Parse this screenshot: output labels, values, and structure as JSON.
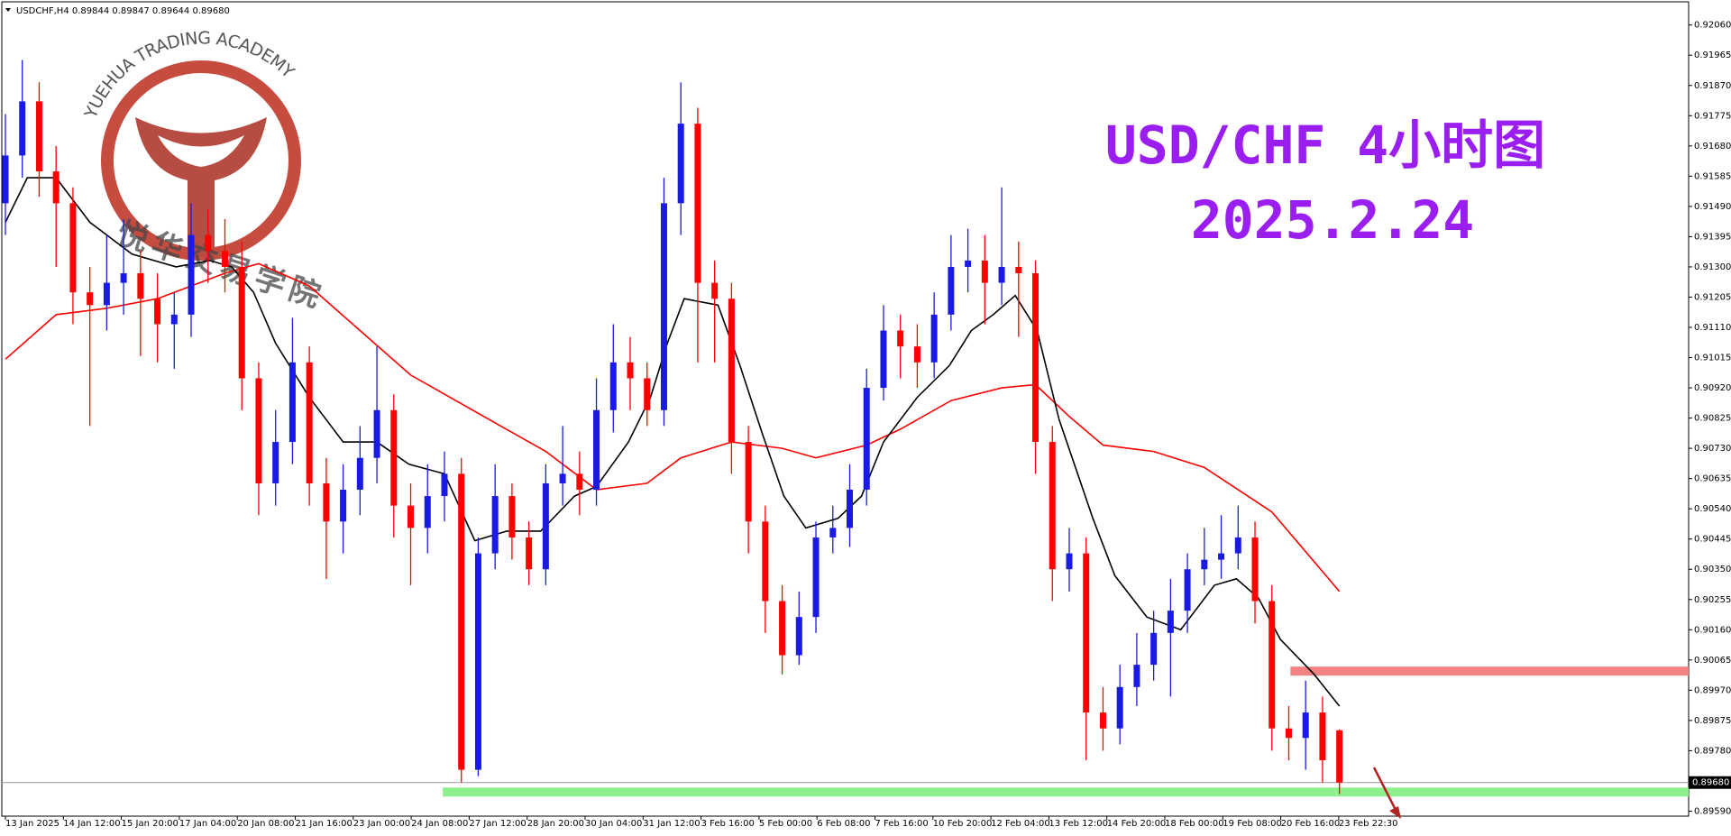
{
  "chart_data": {
    "type": "candlestick",
    "header": "USDCHF,H4  0.89844 0.89847 0.89644 0.89680",
    "title": "USD/CHF 4小时图",
    "subtitle": "2025.2.24",
    "watermark": "YUEHUA TRADING ACADEMY",
    "watermark_cn": "悦华交易学院",
    "up_color": "#1a1ae6",
    "down_color": "#ff0000",
    "categories": [
      "13 Jan 2025",
      "14 Jan 12:00",
      "15 Jan 20:00",
      "17 Jan 04:00",
      "20 Jan 08:00",
      "21 Jan 16:00",
      "23 Jan 00:00",
      "24 Jan 08:00",
      "27 Jan 12:00",
      "28 Jan 20:00",
      "30 Jan 04:00",
      "31 Jan 12:00",
      "3 Feb 16:00",
      "5 Feb 00:00",
      "6 Feb 08:00",
      "7 Feb 16:00",
      "10 Feb 20:00",
      "12 Feb 04:00",
      "13 Feb 12:00",
      "14 Feb 20:00",
      "18 Feb 00:00",
      "19 Feb 08:00",
      "20 Feb 16:00",
      "23 Feb 22:30"
    ],
    "open": [
      0.915,
      0.9165,
      0.9182,
      0.916,
      0.915,
      0.9122,
      0.9118,
      0.9125,
      0.9128,
      0.912,
      0.9112,
      0.9115,
      0.914,
      0.9135,
      0.913,
      0.9095,
      0.9062,
      0.9075,
      0.91,
      0.9062,
      0.905,
      0.906,
      0.907,
      0.9085,
      0.9055,
      0.9048,
      0.9058,
      0.9065,
      0.8972,
      0.904,
      0.9058,
      0.9045,
      0.9035,
      0.9062,
      0.9065,
      0.906,
      0.9085,
      0.91,
      0.9095,
      0.9085,
      0.915,
      0.9175,
      0.9125,
      0.912,
      0.9075,
      0.905,
      0.9025,
      0.9008,
      0.902,
      0.9045,
      0.9048,
      0.906,
      0.9092,
      0.911,
      0.9105,
      0.91,
      0.9115,
      0.913,
      0.9132,
      0.9125,
      0.913,
      0.9128,
      0.9075,
      0.9035,
      0.904,
      0.899,
      0.8985,
      0.8998,
      0.9005,
      0.9015,
      0.9022,
      0.9035,
      0.9038,
      0.904,
      0.9045,
      0.9025,
      0.8985,
      0.8982,
      0.899,
      0.89844
    ],
    "high": [
      0.9178,
      0.9195,
      0.9188,
      0.9168,
      0.9155,
      0.913,
      0.914,
      0.9145,
      0.9135,
      0.9128,
      0.9122,
      0.915,
      0.9148,
      0.9145,
      0.9138,
      0.91,
      0.9085,
      0.9114,
      0.9105,
      0.907,
      0.9068,
      0.908,
      0.9105,
      0.909,
      0.9062,
      0.9068,
      0.9072,
      0.907,
      0.9045,
      0.9068,
      0.9062,
      0.905,
      0.9068,
      0.908,
      0.9072,
      0.9095,
      0.9112,
      0.9108,
      0.91,
      0.9158,
      0.9188,
      0.918,
      0.9132,
      0.9125,
      0.908,
      0.9055,
      0.903,
      0.9028,
      0.905,
      0.9055,
      0.9068,
      0.9098,
      0.9118,
      0.9115,
      0.9112,
      0.9122,
      0.914,
      0.9142,
      0.914,
      0.9155,
      0.9138,
      0.9132,
      0.908,
      0.9048,
      0.9045,
      0.8998,
      0.9005,
      0.9015,
      0.9022,
      0.9032,
      0.904,
      0.9048,
      0.9052,
      0.9055,
      0.905,
      0.903,
      0.8992,
      0.9,
      0.8995,
      0.89847
    ],
    "low": [
      0.914,
      0.9158,
      0.9152,
      0.913,
      0.9112,
      0.908,
      0.911,
      0.9115,
      0.9102,
      0.91,
      0.9098,
      0.9108,
      0.9125,
      0.9122,
      0.9085,
      0.9052,
      0.9055,
      0.9068,
      0.9055,
      0.9032,
      0.904,
      0.9052,
      0.9062,
      0.9045,
      0.903,
      0.904,
      0.905,
      0.8968,
      0.897,
      0.9035,
      0.9038,
      0.903,
      0.903,
      0.9055,
      0.9052,
      0.9055,
      0.9078,
      0.9085,
      0.908,
      0.908,
      0.914,
      0.91,
      0.91,
      0.9065,
      0.904,
      0.9015,
      0.9002,
      0.9005,
      0.9015,
      0.904,
      0.9042,
      0.9055,
      0.9088,
      0.9095,
      0.9092,
      0.9095,
      0.911,
      0.9122,
      0.9112,
      0.9118,
      0.9108,
      0.9065,
      0.9025,
      0.9028,
      0.8975,
      0.8978,
      0.898,
      0.8992,
      0.9,
      0.8995,
      0.9015,
      0.903,
      0.9032,
      0.9035,
      0.9018,
      0.8978,
      0.8975,
      0.8972,
      0.8968,
      0.89644
    ],
    "close": [
      0.9165,
      0.9182,
      0.916,
      0.915,
      0.9122,
      0.9118,
      0.9125,
      0.9128,
      0.912,
      0.9112,
      0.9115,
      0.914,
      0.9135,
      0.913,
      0.9095,
      0.9062,
      0.9075,
      0.91,
      0.9062,
      0.905,
      0.906,
      0.907,
      0.9085,
      0.9055,
      0.9048,
      0.9058,
      0.9065,
      0.8972,
      0.904,
      0.9058,
      0.9045,
      0.9035,
      0.9062,
      0.9065,
      0.906,
      0.9085,
      0.91,
      0.9095,
      0.9085,
      0.915,
      0.9175,
      0.9125,
      0.912,
      0.9075,
      0.905,
      0.9025,
      0.9008,
      0.902,
      0.9045,
      0.9048,
      0.906,
      0.9092,
      0.911,
      0.9105,
      0.91,
      0.9115,
      0.913,
      0.9132,
      0.9125,
      0.913,
      0.9128,
      0.9075,
      0.9035,
      0.904,
      0.899,
      0.8985,
      0.8998,
      0.9005,
      0.9015,
      0.9022,
      0.9035,
      0.9038,
      0.904,
      0.9045,
      0.9025,
      0.8985,
      0.8982,
      0.899,
      0.8975,
      0.8968
    ],
    "ma_slow": {
      "color": "#ff0000",
      "x": [
        0,
        3,
        6,
        9,
        13,
        15,
        18,
        21,
        24,
        26,
        29,
        32,
        35,
        38,
        40,
        43,
        46,
        48,
        51,
        53,
        56,
        59,
        61,
        63,
        65,
        68,
        71,
        75,
        79
      ],
      "values": [
        0.9101,
        0.9115,
        0.9117,
        0.912,
        0.9128,
        0.9131,
        0.9124,
        0.911,
        0.9096,
        0.909,
        0.9081,
        0.9072,
        0.906,
        0.9062,
        0.907,
        0.9075,
        0.9073,
        0.907,
        0.9074,
        0.9079,
        0.9088,
        0.9092,
        0.9093,
        0.9083,
        0.9074,
        0.9072,
        0.9067,
        0.9053,
        0.9028
      ]
    },
    "ma_fast": {
      "color": "#000000",
      "x": [
        0,
        1.3,
        3,
        5,
        7.5,
        10.1,
        12.1,
        13.4,
        14.7,
        16,
        18,
        20,
        22,
        23.9,
        26,
        27.8,
        29.7,
        31.7,
        33.7,
        35,
        36.9,
        38.2,
        39.2,
        40.2,
        42.2,
        43.5,
        44.8,
        46.1,
        47.4,
        49.3,
        50.7,
        52,
        54,
        55.9,
        57.2,
        58.5,
        59.8,
        61.1,
        62.4,
        64.4,
        65.7,
        67.6,
        69.6,
        71.6,
        72.9,
        74.2,
        75.5,
        77.5,
        79
      ],
      "values": [
        0.9144,
        0.9158,
        0.9158,
        0.9144,
        0.9134,
        0.913,
        0.9132,
        0.913,
        0.9122,
        0.9106,
        0.9089,
        0.9075,
        0.9075,
        0.9068,
        0.9065,
        0.9044,
        0.9047,
        0.9047,
        0.9058,
        0.9061,
        0.9075,
        0.9089,
        0.9106,
        0.912,
        0.9118,
        0.9099,
        0.9078,
        0.9058,
        0.9048,
        0.9051,
        0.9058,
        0.9075,
        0.9089,
        0.9099,
        0.911,
        0.9115,
        0.9121,
        0.911,
        0.9082,
        0.9051,
        0.9033,
        0.902,
        0.9016,
        0.903,
        0.9032,
        0.9026,
        0.9013,
        0.9002,
        0.8992
      ]
    },
    "zones": [
      {
        "start": 76.1,
        "price": 0.9003,
        "color": "#f38383"
      },
      {
        "start": 25.9,
        "price": 0.8965,
        "color": "#8ef08e"
      }
    ],
    "last_price": {
      "value": 0.8968,
      "label": "0.89680"
    },
    "ylim": [
      0.8958,
      0.9213
    ],
    "yticks": [
      {
        "value": 0.9206,
        "label": "0.92060"
      },
      0.91965,
      {
        "value": 0.9187,
        "label": "0.91870"
      },
      0.91775,
      {
        "value": 0.9168,
        "label": "0.91680"
      },
      0.91585,
      {
        "value": 0.9149,
        "label": "0.91490"
      },
      0.91395,
      {
        "value": 0.913,
        "label": "0.91300"
      },
      0.91205,
      {
        "value": 0.9111,
        "label": "0.91110"
      },
      0.91015,
      {
        "value": 0.9092,
        "label": "0.90920"
      },
      0.90825,
      {
        "value": 0.9073,
        "label": "0.90730"
      },
      0.90635,
      {
        "value": 0.9054,
        "label": "0.90540"
      },
      0.90445,
      {
        "value": 0.9035,
        "label": "0.90350"
      },
      0.90255,
      {
        "value": 0.9016,
        "label": "0.90160"
      },
      0.90065,
      {
        "value": 0.8997,
        "label": "0.89970"
      },
      0.89875,
      {
        "value": 0.8978,
        "label": "0.89780"
      },
      {
        "value": 0.8959,
        "label": "0.89590"
      }
    ]
  }
}
